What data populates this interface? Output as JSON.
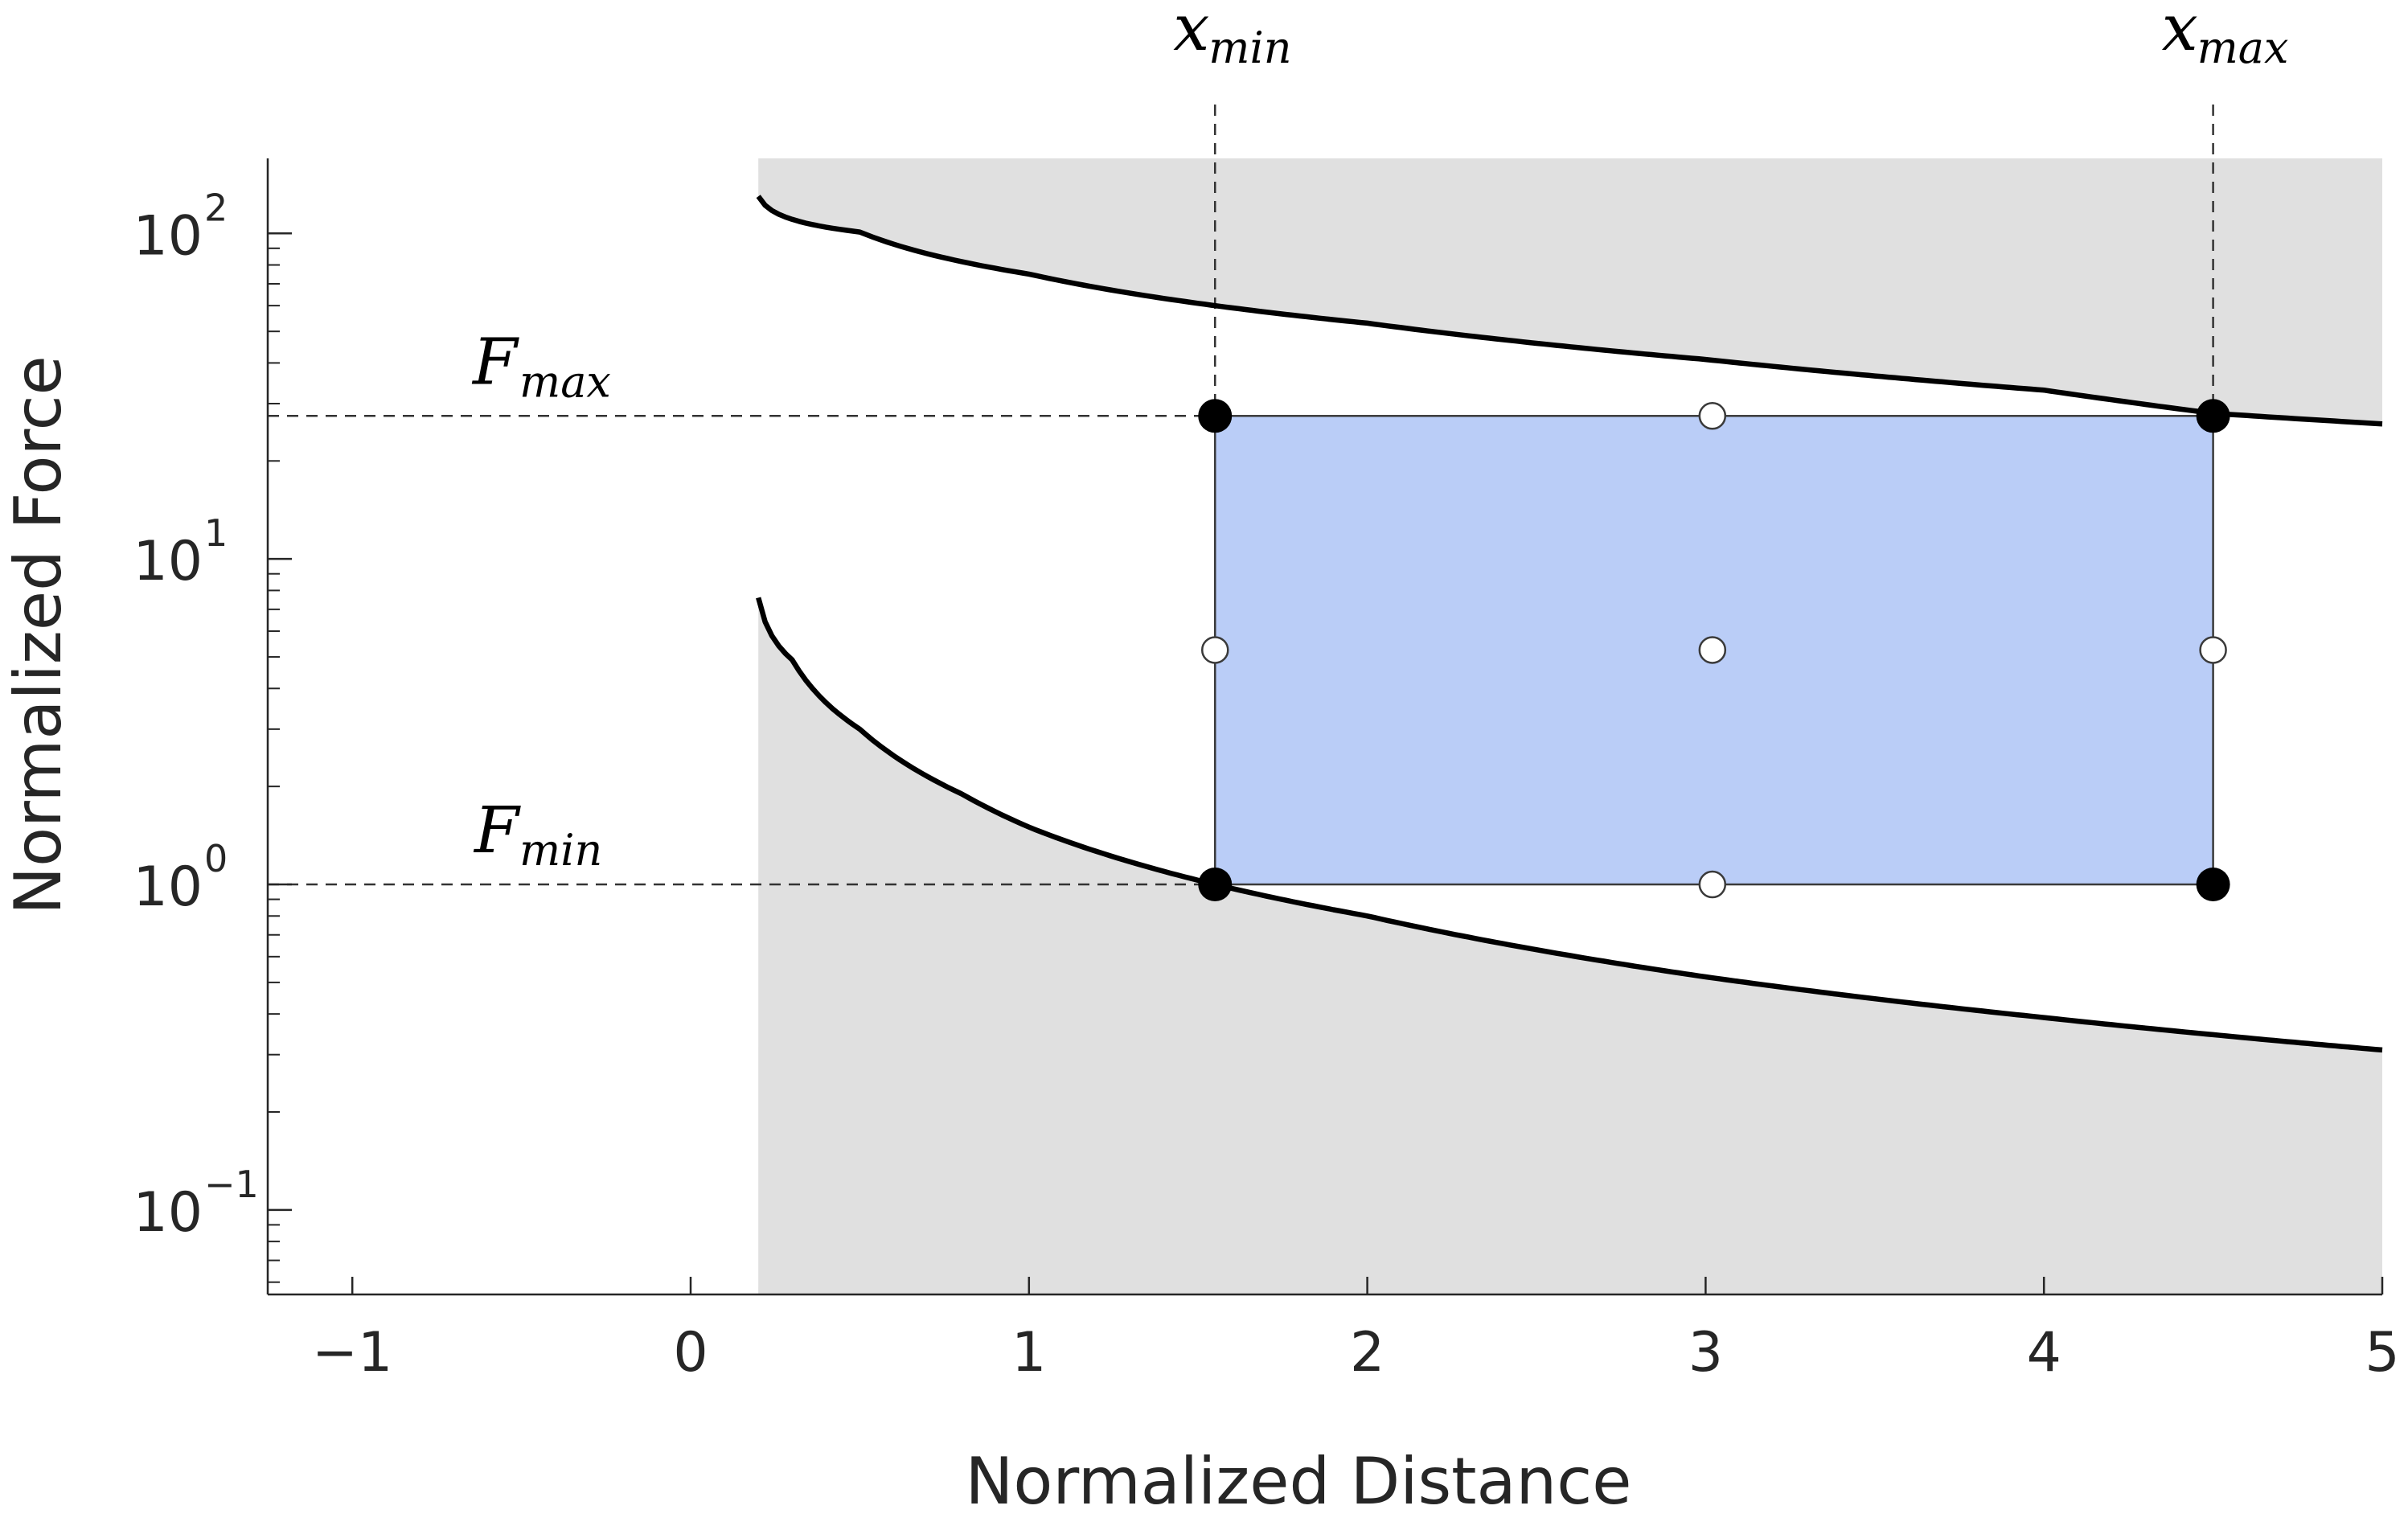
{
  "chart_data": {
    "type": "line",
    "xlabel": "Normalized Distance",
    "ylabel": "Normalized Force",
    "xlim": [
      -1.25,
      5
    ],
    "ylim": [
      0.055,
      170
    ],
    "yscale": "log",
    "grid": false,
    "x_ticks": [
      {
        "value": -1,
        "label": "−1"
      },
      {
        "value": 0,
        "label": "0"
      },
      {
        "value": 1,
        "label": "1"
      },
      {
        "value": 2,
        "label": "2"
      },
      {
        "value": 3,
        "label": "3"
      },
      {
        "value": 4,
        "label": "4"
      },
      {
        "value": 5,
        "label": "5"
      }
    ],
    "y_ticks": [
      {
        "value": 0.1,
        "base": "10",
        "exponent": "−1"
      },
      {
        "value": 1,
        "base": "10",
        "exponent": "0"
      },
      {
        "value": 10,
        "base": "10",
        "exponent": "1"
      },
      {
        "value": 100,
        "base": "10",
        "exponent": "2"
      }
    ],
    "feasible_start_x": 0.2,
    "upper_bound": {
      "x": [
        0.2,
        0.5,
        1.0,
        1.55,
        2.0,
        3.0,
        4.0,
        4.5,
        5.0
      ],
      "y": [
        130,
        101,
        75,
        60,
        53,
        41,
        33,
        28,
        26
      ]
    },
    "lower_bound": {
      "x": [
        0.2,
        0.3,
        0.5,
        0.8,
        1.0,
        1.55,
        2.0,
        3.0,
        4.0,
        5.0
      ],
      "y": [
        7.6,
        4.9,
        3.0,
        1.9,
        1.5,
        1.0,
        0.8,
        0.52,
        0.39,
        0.31
      ]
    },
    "design_region": {
      "x_min": 1.55,
      "x_max": 4.5,
      "f_min": 1.0,
      "f_max": 27.5,
      "fill_color": "#bacdf7"
    },
    "corner_points": [
      {
        "x": 1.55,
        "y": 27.5
      },
      {
        "x": 4.5,
        "y": 27.5
      },
      {
        "x": 1.55,
        "y": 1.0
      },
      {
        "x": 4.5,
        "y": 1.0
      }
    ],
    "interior_points": [
      {
        "x": 3.02,
        "y": 27.5
      },
      {
        "x": 1.55,
        "y": 5.25
      },
      {
        "x": 3.02,
        "y": 5.25
      },
      {
        "x": 4.5,
        "y": 5.25
      },
      {
        "x": 3.02,
        "y": 1.0
      }
    ],
    "annotations": {
      "f_max": {
        "main": "F",
        "sub": "max"
      },
      "f_min": {
        "main": "F",
        "sub": "min"
      },
      "x_min": {
        "main": "x",
        "sub": "min"
      },
      "x_max": {
        "main": "x",
        "sub": "max"
      }
    },
    "colors": {
      "infeasible": "#e0e0e0",
      "curve": "#000000",
      "axis": "#262626"
    }
  }
}
